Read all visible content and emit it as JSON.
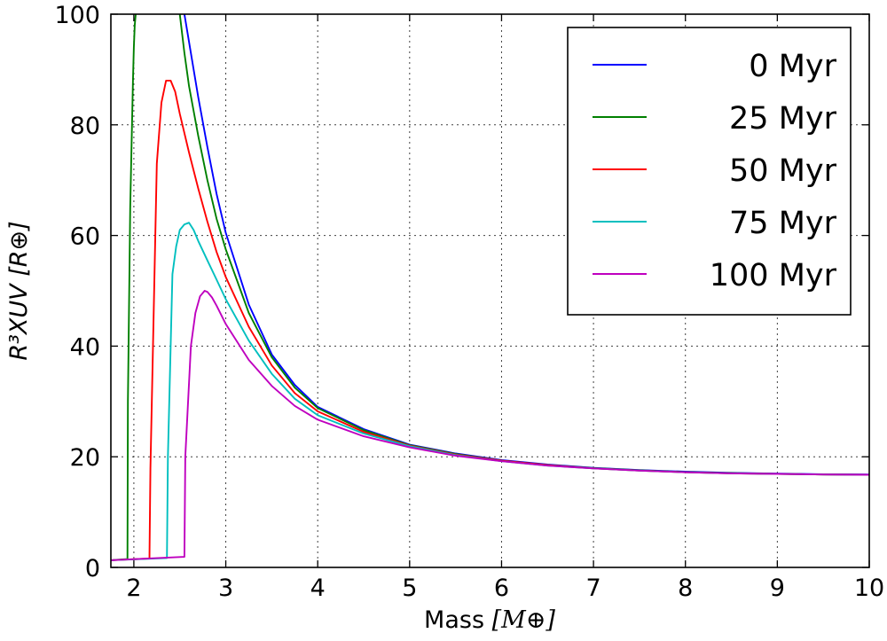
{
  "chart_data": {
    "type": "line",
    "title": "",
    "xlabel": "Mass",
    "xlabel_unit": "[M⊕]",
    "ylabel": "R³XUV [R⊕]",
    "xlim": [
      1.75,
      10
    ],
    "ylim": [
      0,
      100
    ],
    "xticks": [
      2,
      3,
      4,
      5,
      6,
      7,
      8,
      9,
      10
    ],
    "yticks": [
      0,
      20,
      40,
      60,
      80,
      100
    ],
    "grid": true,
    "legend_position": "top-right",
    "series": [
      {
        "name": "0 Myr",
        "color": "#0000ff",
        "x": [
          2.55,
          2.6,
          2.7,
          2.8,
          2.9,
          3.0,
          3.25,
          3.5,
          3.75,
          4.0,
          4.5,
          5.0,
          5.5,
          6.0,
          6.5,
          7.0,
          7.5,
          8.0,
          8.5,
          9.0,
          9.5,
          10.0
        ],
        "y": [
          100,
          95,
          85,
          76,
          67.5,
          60.5,
          47.5,
          38.5,
          33,
          29,
          25,
          22.2,
          20.6,
          19.4,
          18.6,
          18.0,
          17.6,
          17.3,
          17.1,
          16.95,
          16.85,
          16.8
        ]
      },
      {
        "name": "25 Myr",
        "color": "#008000",
        "x": [
          1.75,
          1.93,
          1.935,
          1.96,
          1.99,
          2.0,
          2.01,
          2.02,
          null,
          2.5,
          2.55,
          2.6,
          2.7,
          2.8,
          2.9,
          3.0,
          3.25,
          3.5,
          3.75,
          4.0,
          4.5,
          5.0,
          5.5,
          6.0,
          6.5,
          7.0,
          7.5,
          8.0,
          8.5,
          9.0,
          9.5,
          10.0
        ],
        "y": [
          1.3,
          1.5,
          30,
          65,
          88,
          94,
          98,
          100,
          null,
          100,
          93,
          87,
          78,
          70,
          63,
          57.5,
          46,
          38,
          32.5,
          28.8,
          24.8,
          22.1,
          20.5,
          19.3,
          18.5,
          17.95,
          17.55,
          17.25,
          17.05,
          16.9,
          16.8,
          16.75
        ]
      },
      {
        "name": "50 Myr",
        "color": "#ff0000",
        "x": [
          1.75,
          2.17,
          2.18,
          2.25,
          2.3,
          2.35,
          2.4,
          2.45,
          2.5,
          2.6,
          2.7,
          2.8,
          2.9,
          3.0,
          3.25,
          3.5,
          3.75,
          4.0,
          4.5,
          5.0,
          5.5,
          6.0,
          6.5,
          7.0,
          7.5,
          8.0,
          8.5,
          9.0,
          9.5,
          10.0
        ],
        "y": [
          1.3,
          1.6,
          18,
          73,
          84,
          88,
          88,
          86,
          82,
          75,
          68.5,
          62.5,
          57,
          52.5,
          43.5,
          36.5,
          31.5,
          28.2,
          24.5,
          22.0,
          20.4,
          19.3,
          18.5,
          17.9,
          17.5,
          17.2,
          17.0,
          16.9,
          16.8,
          16.75
        ]
      },
      {
        "name": "75 Myr",
        "color": "#00bfbf",
        "x": [
          1.75,
          2.36,
          2.37,
          2.42,
          2.46,
          2.5,
          2.55,
          2.6,
          2.65,
          2.7,
          2.8,
          2.9,
          3.0,
          3.25,
          3.5,
          3.75,
          4.0,
          4.5,
          5.0,
          5.5,
          6.0,
          6.5,
          7.0,
          7.5,
          8.0,
          8.5,
          9.0,
          9.5,
          10.0
        ],
        "y": [
          1.3,
          1.7,
          20,
          53,
          58,
          61,
          62,
          62.3,
          61,
          59,
          55.5,
          52,
          48.5,
          41,
          35,
          30.5,
          27.5,
          24.2,
          21.9,
          20.3,
          19.2,
          18.4,
          17.9,
          17.5,
          17.2,
          17.0,
          16.9,
          16.8,
          16.75
        ]
      },
      {
        "name": "100 Myr",
        "color": "#bf00bf",
        "x": [
          1.75,
          2.55,
          2.56,
          2.62,
          2.67,
          2.72,
          2.77,
          2.8,
          2.85,
          2.9,
          3.0,
          3.25,
          3.5,
          3.75,
          4.0,
          4.5,
          5.0,
          5.5,
          6.0,
          6.5,
          7.0,
          7.5,
          8.0,
          8.5,
          9.0,
          9.5,
          10.0
        ],
        "y": [
          1.3,
          1.9,
          20,
          40,
          46,
          49,
          50,
          49.8,
          48.8,
          47.3,
          44,
          37.5,
          32.8,
          29.2,
          26.7,
          23.7,
          21.7,
          20.2,
          19.2,
          18.4,
          17.9,
          17.5,
          17.2,
          17.0,
          16.9,
          16.8,
          16.75
        ]
      }
    ]
  }
}
